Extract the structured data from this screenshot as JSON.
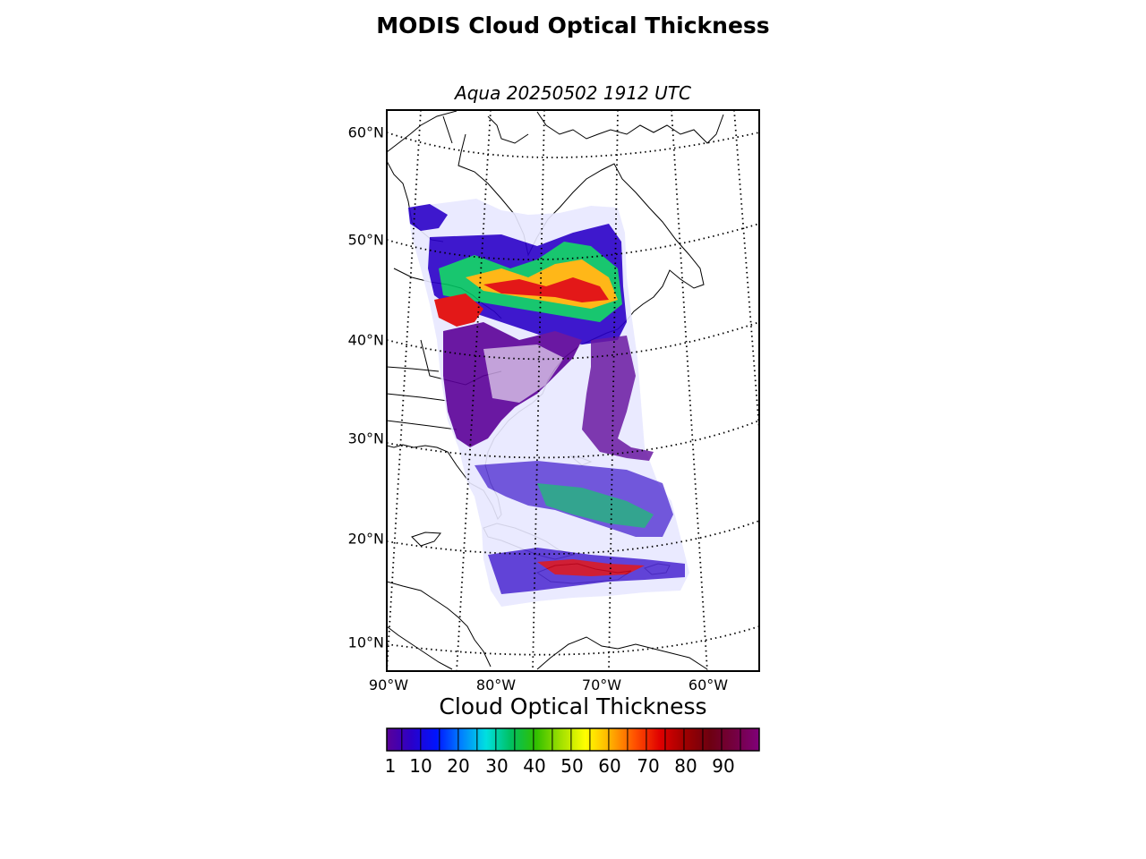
{
  "title": "MODIS Cloud Optical Thickness",
  "subtitle": "Aqua 20250502 1912 UTC",
  "map": {
    "latitude_labels": [
      "60°N",
      "50°N",
      "40°N",
      "30°N",
      "20°N",
      "10°N"
    ],
    "longitude_labels": [
      "90°W",
      "80°W",
      "70°W",
      "60°W"
    ],
    "gridlines": "dotted",
    "projection": "conic"
  },
  "colorbar": {
    "title": "Cloud Optical Thickness",
    "tick_labels": [
      "1",
      "10",
      "20",
      "30",
      "40",
      "50",
      "60",
      "70",
      "80",
      "90"
    ],
    "range": [
      1,
      100
    ],
    "colormap": [
      "#5a0098",
      "#2a00c8",
      "#0014ff",
      "#0080ff",
      "#00e0e0",
      "#00c060",
      "#30c000",
      "#a0e000",
      "#ffff00",
      "#ffb000",
      "#ff5000",
      "#e00000",
      "#a00000",
      "#6e0010",
      "#740040",
      "#80007a"
    ]
  },
  "colors": {
    "background": "#ffffff",
    "land_outline": "#000000",
    "cloud_low": "#5a0098",
    "cloud_mid": "#00c060",
    "cloud_high": "#e00000"
  }
}
